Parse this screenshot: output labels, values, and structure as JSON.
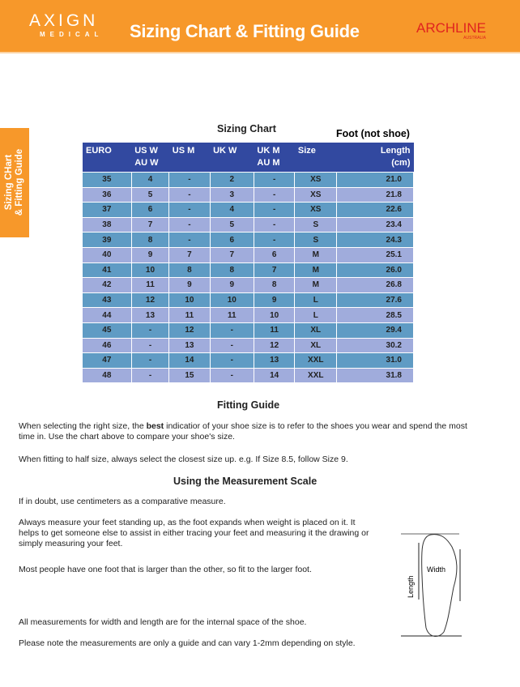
{
  "header": {
    "logo_left": "AXIGN",
    "logo_left_sub": "MEDICAL",
    "title": "Sizing Chart & Fitting Guide",
    "logo_right": "ARCHLINE",
    "logo_right_sub": "AUSTRALIA"
  },
  "side_tab": {
    "line1": "Sizing CHart",
    "line2": "& Fitting Guide"
  },
  "chart": {
    "title": "Sizing Chart",
    "note": "Foot (not shoe)",
    "columns": [
      [
        "EURO",
        ""
      ],
      [
        "US W",
        "AU W"
      ],
      [
        "US M",
        ""
      ],
      [
        "UK W",
        ""
      ],
      [
        "UK M",
        "AU M"
      ],
      [
        "Size",
        ""
      ],
      [
        "Length",
        "(cm)"
      ]
    ],
    "rows": [
      [
        "35",
        "4",
        "-",
        "2",
        "-",
        "XS",
        "21.0"
      ],
      [
        "36",
        "5",
        "-",
        "3",
        "-",
        "XS",
        "21.8"
      ],
      [
        "37",
        "6",
        "-",
        "4",
        "-",
        "XS",
        "22.6"
      ],
      [
        "38",
        "7",
        "-",
        "5",
        "-",
        "S",
        "23.4"
      ],
      [
        "39",
        "8",
        "-",
        "6",
        "-",
        "S",
        "24.3"
      ],
      [
        "40",
        "9",
        "7",
        "7",
        "6",
        "M",
        "25.1"
      ],
      [
        "41",
        "10",
        "8",
        "8",
        "7",
        "M",
        "26.0"
      ],
      [
        "42",
        "11",
        "9",
        "9",
        "8",
        "M",
        "26.8"
      ],
      [
        "43",
        "12",
        "10",
        "10",
        "9",
        "L",
        "27.6"
      ],
      [
        "44",
        "13",
        "11",
        "11",
        "10",
        "L",
        "28.5"
      ],
      [
        "45",
        "-",
        "12",
        "-",
        "11",
        "XL",
        "29.4"
      ],
      [
        "46",
        "-",
        "13",
        "-",
        "12",
        "XL",
        "30.2"
      ],
      [
        "47",
        "-",
        "14",
        "-",
        "13",
        "XXL",
        "31.0"
      ],
      [
        "48",
        "-",
        "15",
        "-",
        "14",
        "XXL",
        "31.8"
      ]
    ]
  },
  "fitting": {
    "title": "Fitting Guide",
    "p1a": "When selecting the right size, the ",
    "p1b": "best",
    "p1c": " indicatior of your shoe size is to refer to the shoes you wear and spend the most time in. Use the chart above to compare your shoe's size.",
    "p2": "When fitting to half size, always select the closest size up. e.g. If Size 8.5, follow Size 9."
  },
  "measure": {
    "title": "Using the Measurement Scale",
    "p1": "If in doubt, use centimeters as a comparative measure.",
    "p2": "Always measure your feet standing up, as the foot expands when weight is placed on it. It helps to get someone else to assist in either tracing your feet and measuring it the drawing or simply measuring your feet.",
    "p3": "Most people have one foot that is larger than the other, so fit to the larger foot.",
    "p4": "All measurements for width and length are for the internal space of the shoe.",
    "p5": "Please note the measurements are only a guide and can vary 1-2mm depending on style.",
    "diagram_length": "Length",
    "diagram_width": "Width"
  }
}
